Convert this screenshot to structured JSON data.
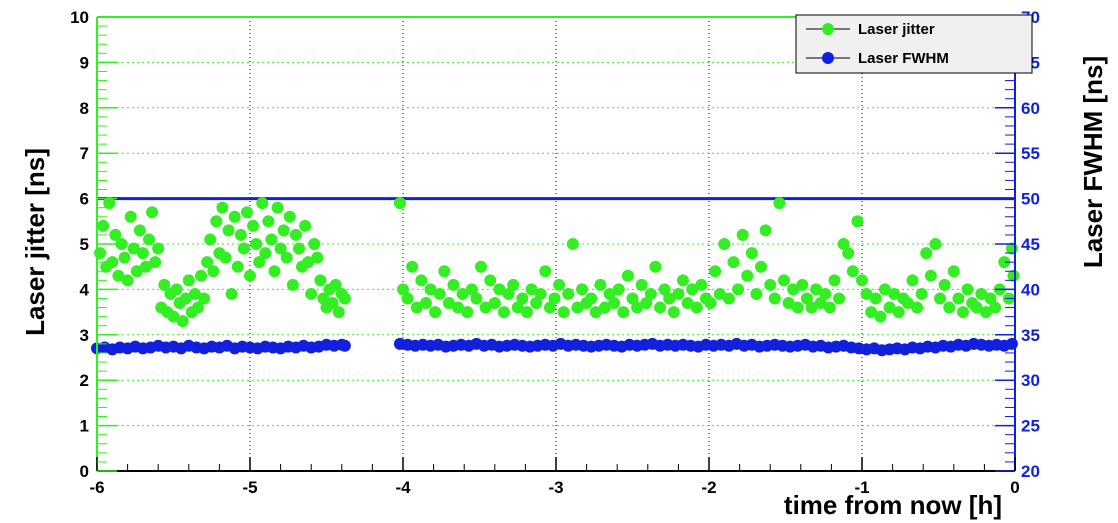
{
  "colors": {
    "jitter": "#33ee22",
    "fwhm": "#1020dd",
    "reference_line": "#1020dd",
    "left_axis": "#33ee22",
    "right_axis": "#1020dd",
    "frame": "#000000",
    "grid": "#000000",
    "legend_bg": "#f0f0f0"
  },
  "chart_data": {
    "type": "scatter",
    "xlabel": "time from now [h]",
    "ylabel": "Laser jitter [ns]",
    "y2label": "Laser FWHM [ns]",
    "xlim": [
      -6,
      0
    ],
    "ylim": [
      0,
      10
    ],
    "y2lim": [
      20,
      70
    ],
    "x_ticks": [
      "-6",
      "-5",
      "-4",
      "-3",
      "-2",
      "-1",
      "0"
    ],
    "y_ticks": [
      "0",
      "1",
      "2",
      "3",
      "4",
      "5",
      "6",
      "7",
      "8",
      "9",
      "10"
    ],
    "y2_ticks": [
      "20",
      "25",
      "30",
      "35",
      "40",
      "45",
      "50",
      "55",
      "60",
      "65",
      "70"
    ],
    "grid": "dotted",
    "legend": {
      "placement": "top-right",
      "entries": [
        {
          "label": "Laser jitter",
          "series": "jitter"
        },
        {
          "label": "Laser FWHM",
          "series": "fwhm"
        }
      ]
    },
    "reference_line": {
      "axis": "y",
      "value": 6
    },
    "series": [
      {
        "name": "Laser jitter",
        "key": "jitter",
        "axis": "left",
        "x": [
          -5.98,
          -5.96,
          -5.94,
          -5.92,
          -5.9,
          -5.88,
          -5.86,
          -5.84,
          -5.82,
          -5.8,
          -5.78,
          -5.76,
          -5.74,
          -5.72,
          -5.7,
          -5.68,
          -5.66,
          -5.64,
          -5.62,
          -5.6,
          -5.58,
          -5.56,
          -5.54,
          -5.52,
          -5.5,
          -5.48,
          -5.46,
          -5.44,
          -5.42,
          -5.4,
          -5.38,
          -5.36,
          -5.34,
          -5.32,
          -5.3,
          -5.28,
          -5.26,
          -5.24,
          -5.22,
          -5.2,
          -5.18,
          -5.16,
          -5.14,
          -5.12,
          -5.1,
          -5.08,
          -5.06,
          -5.04,
          -5.02,
          -5.0,
          -4.98,
          -4.96,
          -4.94,
          -4.92,
          -4.9,
          -4.88,
          -4.86,
          -4.84,
          -4.82,
          -4.8,
          -4.78,
          -4.76,
          -4.74,
          -4.72,
          -4.7,
          -4.68,
          -4.66,
          -4.64,
          -4.62,
          -4.6,
          -4.58,
          -4.56,
          -4.54,
          -4.52,
          -4.5,
          -4.48,
          -4.46,
          -4.44,
          -4.42,
          -4.4,
          -4.38,
          -4.02,
          -4.0,
          -3.97,
          -3.94,
          -3.91,
          -3.88,
          -3.85,
          -3.82,
          -3.79,
          -3.76,
          -3.73,
          -3.7,
          -3.67,
          -3.64,
          -3.61,
          -3.58,
          -3.55,
          -3.52,
          -3.49,
          -3.46,
          -3.43,
          -3.4,
          -3.37,
          -3.34,
          -3.31,
          -3.28,
          -3.25,
          -3.22,
          -3.19,
          -3.16,
          -3.13,
          -3.1,
          -3.07,
          -3.04,
          -3.01,
          -2.98,
          -2.95,
          -2.92,
          -2.89,
          -2.86,
          -2.83,
          -2.8,
          -2.77,
          -2.74,
          -2.71,
          -2.68,
          -2.65,
          -2.62,
          -2.59,
          -2.56,
          -2.53,
          -2.5,
          -2.47,
          -2.44,
          -2.41,
          -2.38,
          -2.35,
          -2.32,
          -2.29,
          -2.26,
          -2.23,
          -2.2,
          -2.17,
          -2.14,
          -2.11,
          -2.08,
          -2.05,
          -2.02,
          -1.99,
          -1.96,
          -1.93,
          -1.9,
          -1.87,
          -1.84,
          -1.81,
          -1.78,
          -1.75,
          -1.72,
          -1.69,
          -1.66,
          -1.63,
          -1.6,
          -1.57,
          -1.54,
          -1.51,
          -1.48,
          -1.45,
          -1.42,
          -1.39,
          -1.36,
          -1.33,
          -1.3,
          -1.27,
          -1.24,
          -1.21,
          -1.18,
          -1.15,
          -1.12,
          -1.09,
          -1.06,
          -1.03,
          -1.0,
          -0.97,
          -0.94,
          -0.91,
          -0.88,
          -0.85,
          -0.82,
          -0.79,
          -0.76,
          -0.73,
          -0.7,
          -0.67,
          -0.64,
          -0.61,
          -0.58,
          -0.55,
          -0.52,
          -0.49,
          -0.46,
          -0.43,
          -0.4,
          -0.37,
          -0.34,
          -0.31,
          -0.28,
          -0.25,
          -0.22,
          -0.19,
          -0.16,
          -0.13,
          -0.1,
          -0.07,
          -0.04,
          -0.02,
          -0.01
        ],
        "y": [
          4.8,
          5.4,
          4.5,
          5.9,
          4.6,
          5.2,
          4.3,
          5.0,
          4.7,
          4.2,
          5.6,
          4.9,
          4.4,
          5.3,
          4.8,
          4.5,
          5.1,
          5.7,
          4.6,
          4.9,
          3.6,
          4.1,
          3.5,
          3.9,
          3.4,
          4.0,
          3.7,
          3.3,
          3.8,
          4.2,
          3.5,
          3.9,
          3.6,
          4.3,
          3.8,
          4.6,
          5.1,
          4.4,
          5.5,
          4.8,
          5.8,
          4.7,
          5.3,
          3.9,
          5.6,
          4.5,
          5.2,
          4.9,
          5.7,
          4.3,
          5.4,
          5.0,
          4.6,
          5.9,
          4.8,
          5.5,
          5.1,
          4.4,
          5.8,
          4.9,
          5.3,
          4.7,
          5.6,
          4.1,
          5.2,
          4.9,
          4.5,
          5.4,
          4.6,
          3.9,
          5.0,
          4.7,
          4.2,
          3.8,
          3.6,
          4.0,
          3.7,
          4.1,
          3.5,
          3.9,
          3.8,
          5.9,
          4.0,
          3.8,
          4.5,
          3.6,
          4.2,
          3.7,
          4.0,
          3.5,
          3.9,
          4.4,
          3.7,
          4.1,
          3.6,
          3.9,
          3.5,
          4.0,
          3.8,
          4.5,
          3.6,
          4.2,
          3.7,
          4.0,
          3.5,
          3.9,
          4.1,
          3.6,
          3.8,
          3.5,
          4.0,
          3.7,
          3.9,
          4.4,
          3.6,
          3.8,
          4.1,
          3.5,
          3.9,
          5.0,
          3.6,
          4.0,
          3.7,
          3.8,
          3.5,
          4.1,
          3.6,
          3.9,
          3.7,
          4.0,
          3.5,
          4.3,
          3.8,
          3.6,
          4.1,
          3.7,
          3.9,
          4.5,
          3.6,
          4.0,
          3.8,
          3.5,
          3.9,
          4.2,
          3.7,
          4.0,
          3.6,
          4.1,
          3.8,
          3.7,
          4.4,
          3.9,
          5.0,
          3.8,
          4.6,
          4.0,
          5.2,
          4.3,
          4.8,
          3.9,
          4.5,
          5.3,
          4.1,
          3.8,
          5.9,
          4.2,
          3.7,
          4.0,
          3.6,
          4.1,
          3.8,
          3.6,
          4.0,
          3.7,
          3.9,
          3.6,
          4.2,
          3.8,
          5.0,
          4.8,
          4.4,
          5.5,
          4.2,
          3.9,
          3.5,
          3.8,
          3.4,
          4.0,
          3.6,
          3.9,
          3.5,
          3.8,
          3.7,
          4.2,
          3.6,
          3.9,
          4.8,
          4.3,
          5.0,
          3.8,
          4.1,
          3.6,
          4.4,
          3.8,
          3.5,
          4.0,
          3.7,
          3.6,
          3.9,
          3.5,
          3.8,
          3.6,
          4.0,
          4.6,
          3.8,
          4.9,
          4.3
        ]
      },
      {
        "name": "Laser FWHM",
        "key": "fwhm",
        "axis": "right",
        "x": [
          -6.0,
          -5.95,
          -5.9,
          -5.85,
          -5.8,
          -5.75,
          -5.7,
          -5.65,
          -5.6,
          -5.55,
          -5.5,
          -5.45,
          -5.4,
          -5.35,
          -5.3,
          -5.25,
          -5.2,
          -5.15,
          -5.1,
          -5.05,
          -5.0,
          -4.95,
          -4.9,
          -4.85,
          -4.8,
          -4.75,
          -4.7,
          -4.65,
          -4.6,
          -4.55,
          -4.5,
          -4.45,
          -4.4,
          -4.38,
          -4.02,
          -3.97,
          -3.92,
          -3.87,
          -3.82,
          -3.77,
          -3.72,
          -3.67,
          -3.62,
          -3.57,
          -3.52,
          -3.47,
          -3.42,
          -3.37,
          -3.32,
          -3.27,
          -3.22,
          -3.17,
          -3.12,
          -3.07,
          -3.02,
          -2.97,
          -2.92,
          -2.87,
          -2.82,
          -2.77,
          -2.72,
          -2.67,
          -2.62,
          -2.57,
          -2.52,
          -2.47,
          -2.42,
          -2.37,
          -2.32,
          -2.27,
          -2.22,
          -2.17,
          -2.12,
          -2.07,
          -2.02,
          -1.97,
          -1.92,
          -1.87,
          -1.82,
          -1.77,
          -1.72,
          -1.67,
          -1.62,
          -1.57,
          -1.52,
          -1.47,
          -1.42,
          -1.37,
          -1.32,
          -1.27,
          -1.22,
          -1.17,
          -1.12,
          -1.07,
          -1.02,
          -0.97,
          -0.92,
          -0.87,
          -0.82,
          -0.77,
          -0.72,
          -0.67,
          -0.62,
          -0.57,
          -0.52,
          -0.47,
          -0.42,
          -0.37,
          -0.32,
          -0.27,
          -0.22,
          -0.17,
          -0.12,
          -0.07,
          -0.02
        ],
        "y": [
          33.5,
          33.6,
          33.4,
          33.6,
          33.5,
          33.7,
          33.5,
          33.6,
          33.8,
          33.6,
          33.7,
          33.5,
          33.8,
          33.6,
          33.5,
          33.7,
          33.6,
          33.8,
          33.5,
          33.7,
          33.6,
          33.5,
          33.7,
          33.6,
          33.5,
          33.7,
          33.6,
          33.8,
          33.6,
          33.7,
          33.9,
          33.8,
          33.9,
          33.8,
          34.0,
          33.9,
          33.8,
          33.9,
          33.8,
          33.9,
          33.7,
          33.8,
          33.9,
          33.8,
          34.0,
          33.8,
          33.9,
          33.7,
          33.8,
          33.9,
          33.8,
          33.7,
          33.8,
          33.9,
          33.8,
          34.0,
          33.8,
          33.9,
          33.8,
          33.7,
          33.8,
          33.9,
          33.8,
          33.7,
          33.9,
          33.8,
          33.9,
          34.0,
          33.8,
          33.9,
          33.8,
          33.9,
          33.8,
          33.7,
          33.9,
          33.8,
          33.9,
          33.8,
          34.0,
          33.8,
          33.9,
          33.7,
          33.8,
          33.9,
          33.8,
          33.7,
          33.8,
          33.9,
          33.7,
          33.8,
          33.6,
          33.7,
          33.8,
          33.6,
          33.5,
          33.4,
          33.5,
          33.3,
          33.4,
          33.5,
          33.4,
          33.6,
          33.5,
          33.7,
          33.6,
          33.8,
          33.7,
          33.9,
          33.8,
          34.0,
          33.9,
          33.8,
          33.9,
          33.8,
          34.0
        ]
      }
    ]
  }
}
